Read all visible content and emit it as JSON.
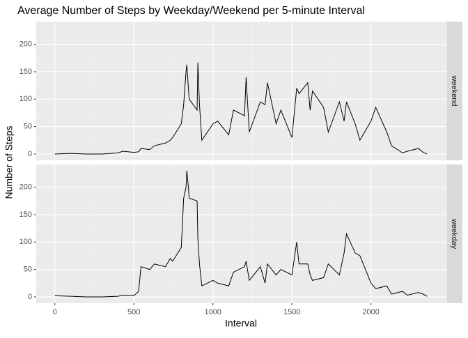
{
  "chart_data": {
    "type": "line",
    "title": "Average Number of Steps by Weekday/Weekend per 5-minute Interval",
    "x_label": "Interval",
    "y_label": "Number of Steps",
    "x": [
      0,
      100,
      200,
      300,
      400,
      430,
      500,
      530,
      545,
      600,
      630,
      700,
      730,
      745,
      800,
      815,
      830,
      835,
      845,
      850,
      900,
      905,
      915,
      930,
      1000,
      1030,
      1100,
      1130,
      1200,
      1210,
      1230,
      1300,
      1330,
      1345,
      1400,
      1430,
      1500,
      1530,
      1545,
      1600,
      1615,
      1630,
      1700,
      1730,
      1800,
      1830,
      1845,
      1900,
      1930,
      2000,
      2030,
      2100,
      2130,
      2200,
      2230,
      2300,
      2330,
      2355
    ],
    "series": [
      {
        "name": "weekend",
        "color": "#000000",
        "values": [
          0,
          1,
          0,
          0,
          2,
          5,
          3,
          4,
          10,
          8,
          15,
          20,
          25,
          30,
          55,
          90,
          150,
          163,
          120,
          100,
          80,
          167,
          90,
          25,
          55,
          60,
          35,
          80,
          70,
          140,
          40,
          95,
          90,
          130,
          55,
          80,
          30,
          120,
          110,
          130,
          80,
          115,
          85,
          40,
          95,
          60,
          95,
          55,
          25,
          60,
          85,
          40,
          15,
          2,
          5,
          10,
          3,
          0
        ]
      },
      {
        "name": "weekday",
        "color": "#000000",
        "values": [
          2,
          1,
          0,
          0,
          1,
          3,
          2,
          10,
          55,
          50,
          60,
          55,
          70,
          65,
          90,
          180,
          200,
          230,
          200,
          180,
          175,
          105,
          60,
          20,
          30,
          25,
          20,
          45,
          55,
          65,
          30,
          55,
          25,
          60,
          40,
          50,
          40,
          100,
          60,
          60,
          40,
          30,
          35,
          60,
          40,
          80,
          115,
          80,
          75,
          25,
          15,
          20,
          5,
          10,
          3,
          8,
          5,
          1
        ]
      }
    ],
    "xlim": [
      -117.75,
      2472.75
    ],
    "ylim": [
      -11.5,
      241.5
    ],
    "xticks": [
      0,
      500,
      1000,
      1500,
      2000
    ],
    "yticks": [
      0,
      50,
      100,
      150,
      200
    ],
    "grid": true
  }
}
